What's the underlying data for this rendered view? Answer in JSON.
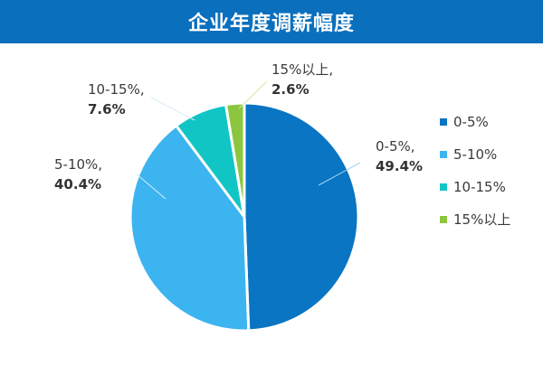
{
  "chart_data": {
    "type": "pie",
    "title": "企业年度调薪幅度",
    "slices": [
      {
        "name": "0-5%",
        "value": 49.4,
        "label": "0-5%,",
        "value_label": "49.4%",
        "color": "#0a75c2"
      },
      {
        "name": "5-10%",
        "value": 40.4,
        "label": "5-10%,",
        "value_label": "40.4%",
        "color": "#3cb4f0"
      },
      {
        "name": "10-15%",
        "value": 7.6,
        "label": "10-15%,",
        "value_label": "7.6%",
        "color": "#11c5c5"
      },
      {
        "name": "15%以上",
        "value": 2.6,
        "label": "15%以上,",
        "value_label": "2.6%",
        "color": "#8cc63f"
      }
    ],
    "legend": [
      "0-5%",
      "5-10%",
      "10-15%",
      "15%以上"
    ],
    "legend_position": "right"
  }
}
